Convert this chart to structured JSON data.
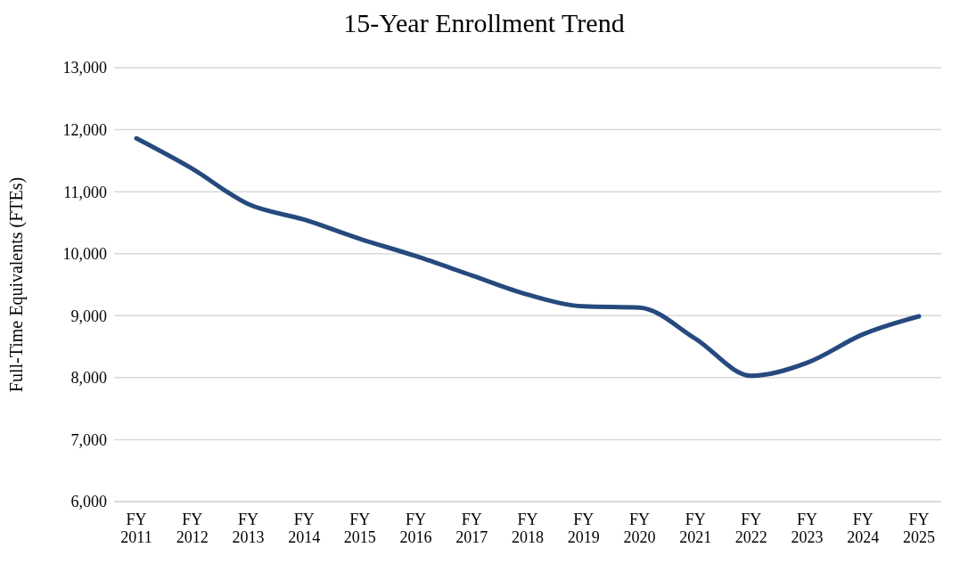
{
  "chart_data": {
    "type": "line",
    "title": "15-Year Enrollment Trend",
    "ylabel": "Full-Time Equivalents (FTEs)",
    "categories": [
      "FY 2011",
      "FY 2012",
      "FY 2013",
      "FY 2014",
      "FY 2015",
      "FY 2016",
      "FY 2017",
      "FY 2018",
      "FY 2019",
      "FY 2020",
      "FY 2021",
      "FY 2022",
      "FY 2023",
      "FY 2024",
      "FY 2025"
    ],
    "series": [
      {
        "color": "#264a7e",
        "values": [
          11860,
          11370,
          10800,
          10550,
          10240,
          9960,
          9650,
          9340,
          9150,
          9130,
          8630,
          8030,
          8240,
          8700,
          8990
        ]
      }
    ],
    "ylim": [
      6000,
      13000
    ],
    "yticks": [
      {
        "value": 6000,
        "label": "6,000"
      },
      {
        "value": 7000,
        "label": "7,000"
      },
      {
        "value": 8000,
        "label": "8,000"
      },
      {
        "value": 9000,
        "label": "9,000"
      },
      {
        "value": 10000,
        "label": "10,000"
      },
      {
        "value": 11000,
        "label": "11,000"
      },
      {
        "value": 12000,
        "label": "12,000"
      },
      {
        "value": 13000,
        "label": "13,000"
      }
    ],
    "grid": "y",
    "legend": false,
    "marker": "none",
    "line_style": "solid"
  }
}
